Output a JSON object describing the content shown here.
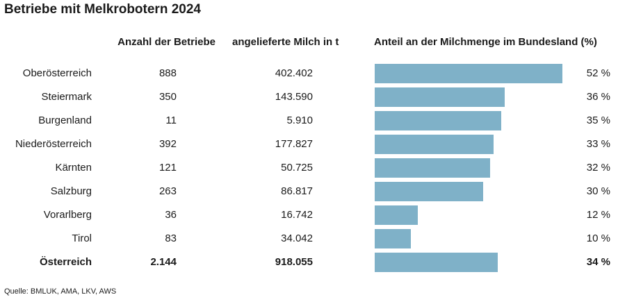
{
  "title": "Betriebe mit Melkrobotern 2024",
  "source": "Quelle: BMLUK, AMA, LKV, AWS",
  "chart_data": {
    "type": "bar",
    "orientation": "horizontal",
    "title": "Betriebe mit Melkrobotern 2024",
    "columns": [
      "Anzahl der Betriebe",
      "angelieferte Milch in t",
      "Anteil an der Milchmenge im Bundesland (%)"
    ],
    "rows": [
      {
        "region": "Oberösterreich",
        "count": "888",
        "milk": "402.402",
        "share": 52,
        "share_label": "52 %"
      },
      {
        "region": "Steiermark",
        "count": "350",
        "milk": "143.590",
        "share": 36,
        "share_label": "36 %"
      },
      {
        "region": "Burgenland",
        "count": "11",
        "milk": "5.910",
        "share": 35,
        "share_label": "35 %"
      },
      {
        "region": "Niederösterreich",
        "count": "392",
        "milk": "177.827",
        "share": 33,
        "share_label": "33 %"
      },
      {
        "region": "Kärnten",
        "count": "121",
        "milk": "50.725",
        "share": 32,
        "share_label": "32 %"
      },
      {
        "region": "Salzburg",
        "count": "263",
        "milk": "86.817",
        "share": 30,
        "share_label": "30 %"
      },
      {
        "region": "Vorarlberg",
        "count": "36",
        "milk": "16.742",
        "share": 12,
        "share_label": "12 %"
      },
      {
        "region": "Tirol",
        "count": "83",
        "milk": "34.042",
        "share": 10,
        "share_label": "10 %"
      },
      {
        "region": "Österreich",
        "count": "2.144",
        "milk": "918.055",
        "share": 34,
        "share_label": "34 %",
        "total": true
      }
    ],
    "bar_color": "#7fb1c8"
  }
}
